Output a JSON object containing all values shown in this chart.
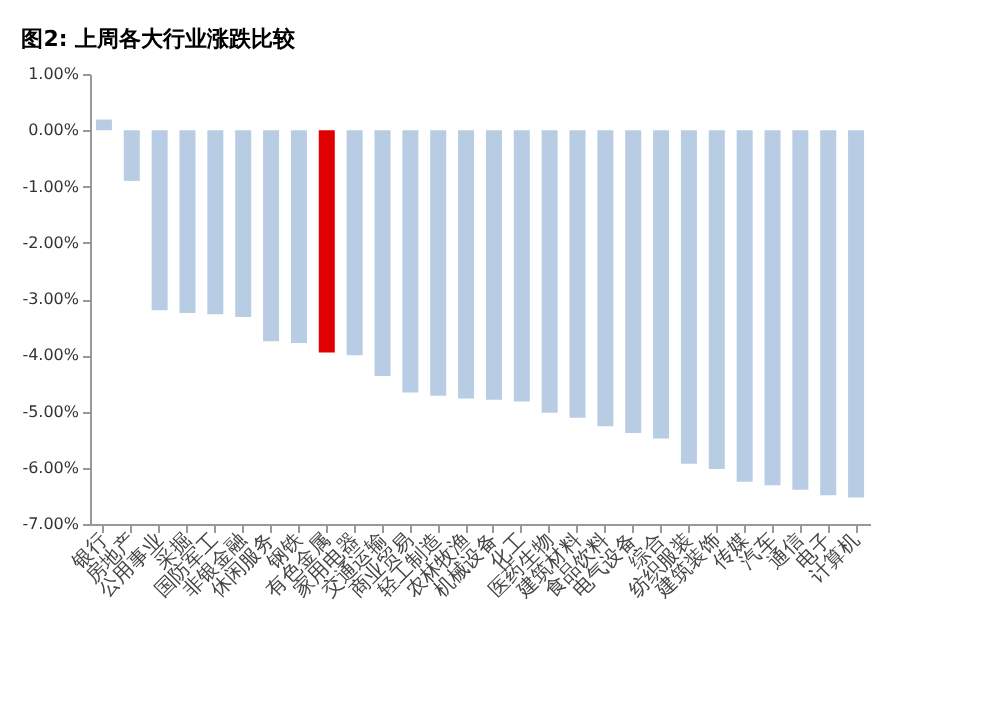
{
  "chart_data": {
    "type": "bar",
    "title": "图2: 上周各大行业涨跌比较",
    "categories": [
      "银行",
      "房地产",
      "公用事业",
      "采掘",
      "国防军工",
      "非银金融",
      "休闲服务",
      "钢铁",
      "有色金属",
      "家用电器",
      "交通运输",
      "商业贸易",
      "轻工制造",
      "农林牧渔",
      "机械设备",
      "化工",
      "医药生物",
      "建筑材料",
      "食品饮料",
      "电气设备",
      "综合",
      "纺织服装",
      "建筑装饰",
      "传媒",
      "汽车",
      "通信",
      "电子",
      "计算机"
    ],
    "values": [
      0.19,
      -0.9,
      -3.2,
      -3.25,
      -3.27,
      -3.32,
      -3.75,
      -3.78,
      -3.95,
      -4.0,
      -4.37,
      -4.66,
      -4.72,
      -4.77,
      -4.79,
      -4.82,
      -5.02,
      -5.11,
      -5.26,
      -5.38,
      -5.48,
      -5.93,
      -6.02,
      -6.25,
      -6.31,
      -6.39,
      -6.49,
      -6.53
    ],
    "colors": [
      "#b8cce4",
      "#b8cce4",
      "#b8cce4",
      "#b8cce4",
      "#b8cce4",
      "#b8cce4",
      "#b8cce4",
      "#b8cce4",
      "#e00000",
      "#b8cce4",
      "#b8cce4",
      "#b8cce4",
      "#b8cce4",
      "#b8cce4",
      "#b8cce4",
      "#b8cce4",
      "#b8cce4",
      "#b8cce4",
      "#b8cce4",
      "#b8cce4",
      "#b8cce4",
      "#b8cce4",
      "#b8cce4",
      "#b8cce4",
      "#b8cce4",
      "#b8cce4",
      "#b8cce4",
      "#b8cce4"
    ],
    "ylim": [
      -7,
      1
    ],
    "yticks": [
      {
        "value": 1,
        "label": "1.00%"
      },
      {
        "value": 0,
        "label": "0.00%"
      },
      {
        "value": -1,
        "label": "-1.00%"
      },
      {
        "value": -2,
        "label": "-2.00%"
      },
      {
        "value": -3,
        "label": "-3.00%"
      },
      {
        "value": -4,
        "label": "-4.00%"
      },
      {
        "value": -5,
        "label": "-5.00%"
      },
      {
        "value": -6,
        "label": "-6.00%"
      },
      {
        "value": -7,
        "label": "-7.00%"
      }
    ],
    "grid": false
  }
}
